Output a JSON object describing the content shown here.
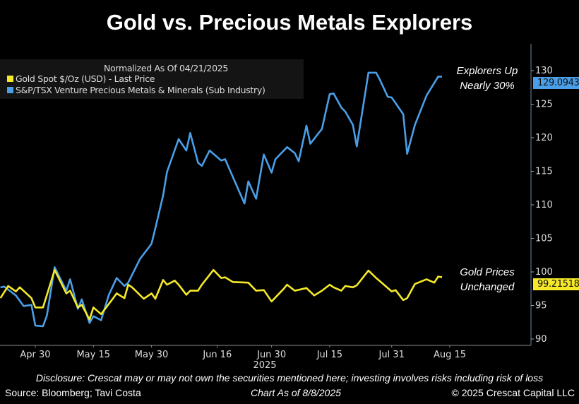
{
  "title": "Gold vs. Precious Metals Explorers",
  "legend": {
    "header": "Normalized As Of 04/21/2025",
    "items": [
      {
        "label": "Gold Spot $/Oz (USD) - Last Price",
        "color": "#f5e92a"
      },
      {
        "label": "S&P/TSX Venture Precious Metals & Minerals (Sub Industry)",
        "color": "#4a9fe8"
      }
    ]
  },
  "annotations": {
    "explorers_line1": "Explorers Up",
    "explorers_line2": "Nearly 30%",
    "gold_line1": "Gold Prices",
    "gold_line2": "Unchanged"
  },
  "last_value_flags": {
    "explorers": "129.09438",
    "gold": "99.21518"
  },
  "footer": {
    "disclosure": "Disclosure: Crescat may or may not own the securities mentioned here; investing involves risks including risk of loss",
    "source": "Source: Bloomberg; Tavi Costa",
    "as_of": "Chart As of 8/8/2025",
    "copyright": "© 2025 Crescat Capital LLC"
  },
  "chart_data": {
    "type": "line",
    "title": "Gold vs. Precious Metals Explorers",
    "xlabel": "2025",
    "ylabel": "",
    "y_axis_side": "right",
    "ylim": [
      90,
      130
    ],
    "yticks": [
      90,
      95,
      100,
      105,
      110,
      115,
      120,
      125,
      130
    ],
    "xticks": [
      {
        "date": "2025-04-30",
        "label": "Apr 30"
      },
      {
        "date": "2025-05-15",
        "label": "May 15"
      },
      {
        "date": "2025-05-30",
        "label": "May 30"
      },
      {
        "date": "2025-06-16",
        "label": "Jun 16"
      },
      {
        "date": "2025-06-30",
        "label": "Jun 30"
      },
      {
        "date": "2025-07-15",
        "label": "Jul 15"
      },
      {
        "date": "2025-07-31",
        "label": "Jul 31"
      },
      {
        "date": "2025-08-15",
        "label": "Aug 15"
      }
    ],
    "xlim": [
      "2025-04-21",
      "2025-08-28"
    ],
    "grid": false,
    "legend_position": "top-left",
    "background": "#000000",
    "series": [
      {
        "name": "S&P/TSX Venture Precious Metals & Minerals (Sub Industry)",
        "color": "#4a9fe8",
        "x": [
          "2025-04-21",
          "2025-04-22",
          "2025-04-25",
          "2025-04-27",
          "2025-04-29",
          "2025-04-30",
          "2025-05-02",
          "2025-05-03",
          "2025-05-05",
          "2025-05-08",
          "2025-05-09",
          "2025-05-11",
          "2025-05-12",
          "2025-05-14",
          "2025-05-15",
          "2025-05-17",
          "2025-05-19",
          "2025-05-21",
          "2025-05-23",
          "2025-05-24",
          "2025-05-27",
          "2025-05-30",
          "2025-05-31",
          "2025-06-02",
          "2025-06-03",
          "2025-06-06",
          "2025-06-08",
          "2025-06-09",
          "2025-06-11",
          "2025-06-12",
          "2025-06-14",
          "2025-06-17",
          "2025-06-18",
          "2025-06-23",
          "2025-06-24",
          "2025-06-26",
          "2025-06-28",
          "2025-06-30",
          "2025-07-01",
          "2025-07-04",
          "2025-07-06",
          "2025-07-07",
          "2025-07-09",
          "2025-07-10",
          "2025-07-12",
          "2025-07-13",
          "2025-07-15",
          "2025-07-16",
          "2025-07-18",
          "2025-07-19",
          "2025-07-21",
          "2025-07-22",
          "2025-07-25",
          "2025-07-27",
          "2025-07-28",
          "2025-07-30",
          "2025-07-31",
          "2025-08-03",
          "2025-08-04",
          "2025-08-06",
          "2025-08-09",
          "2025-08-12",
          "2025-08-13"
        ],
        "values": [
          97.7,
          97.8,
          96.5,
          94.9,
          95.1,
          92.0,
          91.9,
          93.5,
          100.7,
          97.2,
          98.9,
          94.5,
          95.9,
          92.4,
          93.4,
          92.8,
          96.6,
          99.1,
          97.9,
          98.4,
          101.9,
          104.2,
          106.5,
          111.4,
          114.9,
          119.8,
          118.1,
          120.7,
          116.3,
          115.8,
          118.1,
          116.6,
          116.8,
          110.2,
          113.5,
          110.9,
          117.5,
          114.8,
          116.8,
          118.6,
          117.7,
          116.5,
          121.8,
          119.1,
          120.6,
          121.3,
          126.5,
          126.6,
          124.5,
          123.9,
          121.9,
          118.7,
          129.7,
          129.7,
          128.6,
          126.1,
          126.0,
          123.5,
          117.6,
          121.9,
          126.3,
          129.1,
          129.09
        ]
      },
      {
        "name": "Gold Spot $/Oz (USD) - Last Price",
        "color": "#f5e92a",
        "x": [
          "2025-04-21",
          "2025-04-23",
          "2025-04-25",
          "2025-04-26",
          "2025-04-29",
          "2025-04-30",
          "2025-05-02",
          "2025-05-05",
          "2025-05-08",
          "2025-05-09",
          "2025-05-11",
          "2025-05-12",
          "2025-05-14",
          "2025-05-15",
          "2025-05-17",
          "2025-05-20",
          "2025-05-21",
          "2025-05-23",
          "2025-05-24",
          "2025-05-25",
          "2025-05-28",
          "2025-05-30",
          "2025-05-31",
          "2025-06-02",
          "2025-06-03",
          "2025-06-05",
          "2025-06-06",
          "2025-06-08",
          "2025-06-09",
          "2025-06-11",
          "2025-06-12",
          "2025-06-15",
          "2025-06-17",
          "2025-06-18",
          "2025-06-20",
          "2025-06-24",
          "2025-06-26",
          "2025-06-28",
          "2025-06-30",
          "2025-07-03",
          "2025-07-04",
          "2025-07-06",
          "2025-07-09",
          "2025-07-11",
          "2025-07-13",
          "2025-07-15",
          "2025-07-16",
          "2025-07-18",
          "2025-07-19",
          "2025-07-21",
          "2025-07-22",
          "2025-07-25",
          "2025-07-27",
          "2025-07-28",
          "2025-07-31",
          "2025-08-01",
          "2025-08-03",
          "2025-08-04",
          "2025-08-06",
          "2025-08-09",
          "2025-08-11",
          "2025-08-12",
          "2025-08-13"
        ],
        "values": [
          96.1,
          97.9,
          97.1,
          97.7,
          96.1,
          94.7,
          94.7,
          100.3,
          96.8,
          97.2,
          94.7,
          95.1,
          92.9,
          94.7,
          93.7,
          96.0,
          96.8,
          96.1,
          98.1,
          97.7,
          96.0,
          96.8,
          96.0,
          98.8,
          98.1,
          98.7,
          98.1,
          96.6,
          97.2,
          97.2,
          98.1,
          100.3,
          99.1,
          99.2,
          98.5,
          98.4,
          97.2,
          97.3,
          95.6,
          97.4,
          98.1,
          97.2,
          97.6,
          96.5,
          97.2,
          98.1,
          97.7,
          97.2,
          97.9,
          97.7,
          98.0,
          100.2,
          99.1,
          98.6,
          97.1,
          97.3,
          95.8,
          96.1,
          98.2,
          98.9,
          98.4,
          99.3,
          99.22
        ]
      }
    ]
  }
}
